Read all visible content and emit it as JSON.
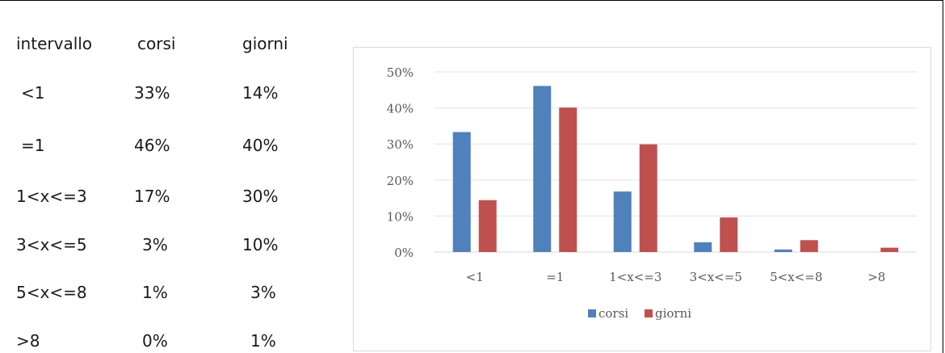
{
  "table": {
    "headers": [
      "intervallo",
      "corsi",
      "giorni"
    ],
    "rows": [
      [
        "<1",
        "33%",
        "14%"
      ],
      [
        "=1",
        "46%",
        "40%"
      ],
      [
        "1<x<=3",
        "17%",
        "30%"
      ],
      [
        "3<x<=5",
        "3%",
        "10%"
      ],
      [
        "5<x<=8",
        "1%",
        "3%"
      ],
      [
        ">8",
        "0%",
        "1%"
      ]
    ]
  },
  "chart_data": {
    "type": "bar",
    "categories": [
      "<1",
      "=1",
      "1<x<=3",
      "3<x<=5",
      "5<x<=8",
      ">8"
    ],
    "series": [
      {
        "name": "corsi",
        "values": [
          33.3,
          46.1,
          16.8,
          2.7,
          0.7,
          0.0
        ],
        "color": "#4f81bd"
      },
      {
        "name": "giorni",
        "values": [
          14.4,
          40.1,
          29.9,
          9.6,
          3.3,
          1.2
        ],
        "color": "#c0504d"
      }
    ],
    "yticks": [
      "0%",
      "10%",
      "20%",
      "30%",
      "40%",
      "50%"
    ],
    "ylim": [
      0,
      50
    ],
    "grid": true,
    "legend": "bottom",
    "title": "",
    "xlabel": "",
    "ylabel": ""
  }
}
